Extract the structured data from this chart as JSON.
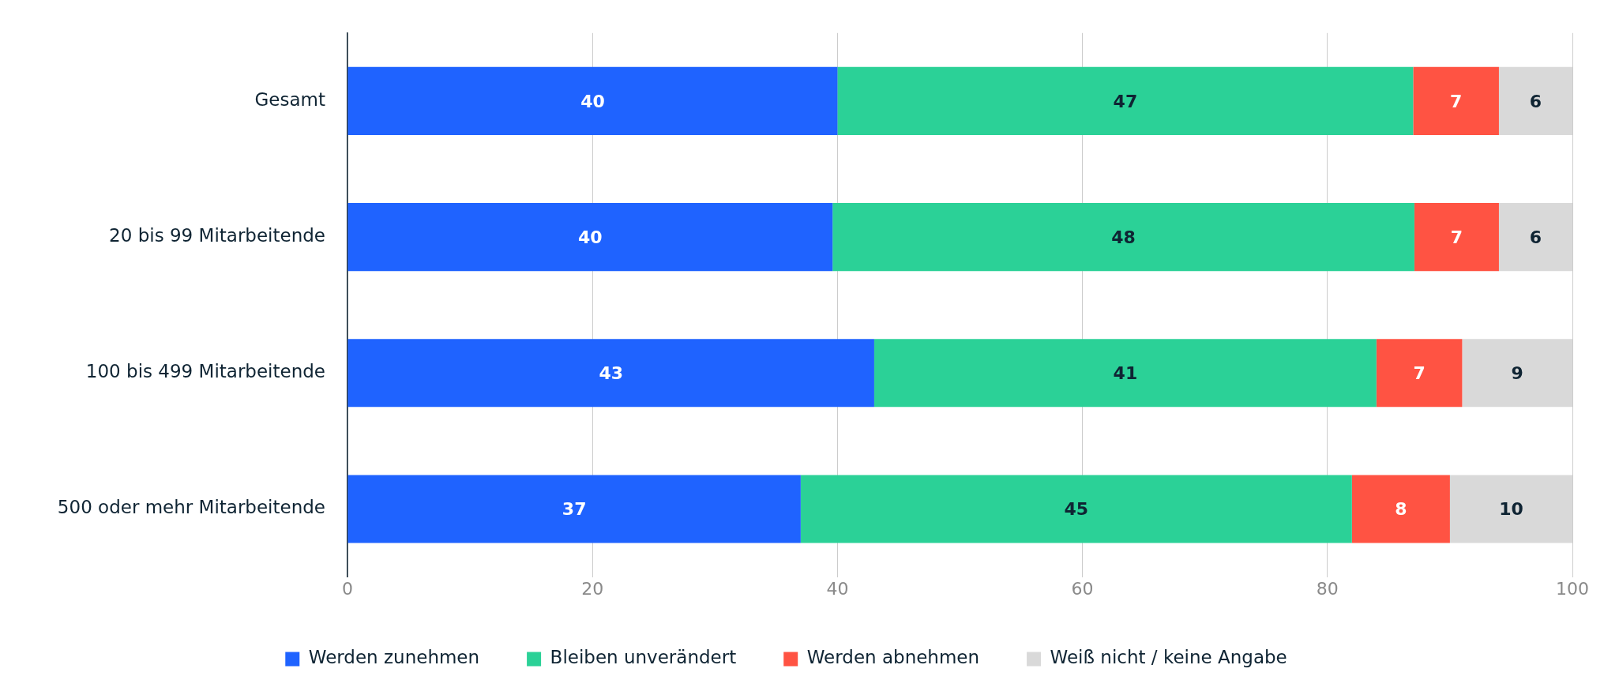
{
  "chart_data": {
    "type": "bar",
    "orientation": "horizontal",
    "stacked": true,
    "categories": [
      "Gesamt",
      "20 bis 99 Mitarbeitende",
      "100 bis 499 Mitarbeitende",
      "500 oder mehr Mitarbeitende"
    ],
    "series": [
      {
        "name": "Werden zunehmen",
        "color": "#1f63ff",
        "values": [
          40,
          39.6,
          43,
          37
        ],
        "value_labels": [
          "40",
          "40",
          "43",
          "37"
        ]
      },
      {
        "name": "Bleiben unverändert",
        "color": "#2bd197",
        "values": [
          47,
          47.5,
          41,
          45
        ],
        "value_labels": [
          "47",
          "48",
          "41",
          "45"
        ]
      },
      {
        "name": "Werden abnehmen",
        "color": "#ff5343",
        "values": [
          7,
          6.9,
          7,
          8
        ],
        "value_labels": [
          "7",
          "7",
          "7",
          "8"
        ]
      },
      {
        "name": "Weiß nicht / keine Angabe",
        "color": "#d9d9d9",
        "values": [
          6,
          6,
          9,
          10
        ],
        "value_labels": [
          "6",
          "6",
          "9",
          "10"
        ]
      }
    ],
    "xlim": [
      0,
      100
    ],
    "xticks": [
      0,
      20,
      40,
      60,
      80,
      100
    ],
    "grid": "x",
    "legend": "bottom"
  }
}
